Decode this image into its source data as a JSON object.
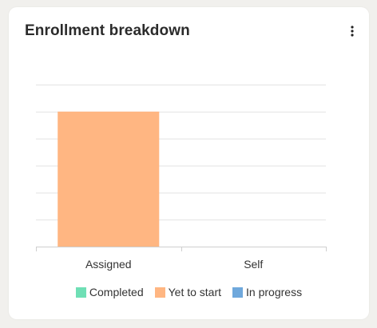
{
  "card": {
    "title": "Enrollment breakdown",
    "menu_icon": "kebab-vertical-icon"
  },
  "chart_data": {
    "type": "bar",
    "stacked": true,
    "categories": [
      "Assigned",
      "Self"
    ],
    "series": [
      {
        "name": "Completed",
        "color": "#6fdfb5",
        "values": [
          0,
          0
        ]
      },
      {
        "name": "Yet to start",
        "color": "#ffb682",
        "values": [
          5,
          0
        ]
      },
      {
        "name": "In progress",
        "color": "#6fa8dc",
        "values": [
          0,
          0
        ]
      }
    ],
    "ylim": [
      0,
      6
    ],
    "yticks": [
      0,
      1,
      2,
      3,
      4,
      5,
      6
    ],
    "grid": true,
    "legend_position": "bottom",
    "xlabel": "",
    "ylabel": ""
  }
}
